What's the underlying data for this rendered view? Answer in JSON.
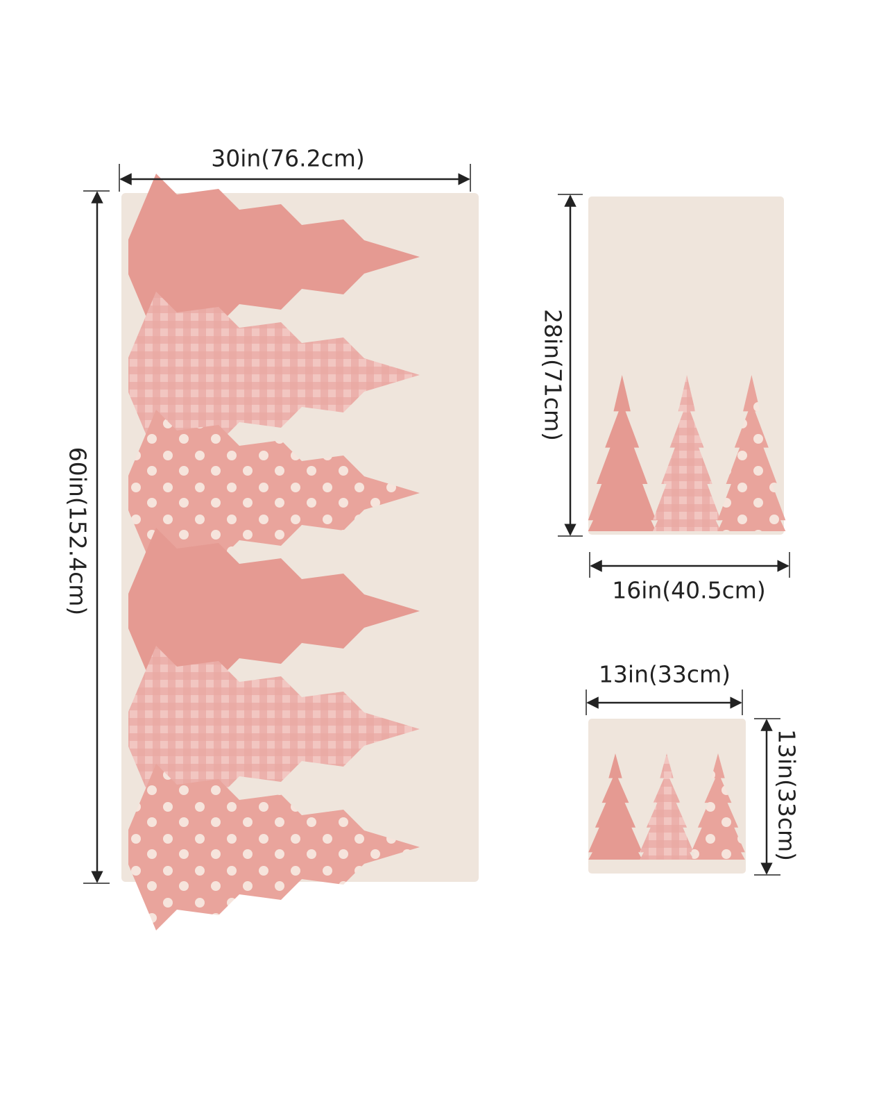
{
  "towels": [
    {
      "width_label": "30in(76.2cm)",
      "height_label": "60in(152.4cm)"
    },
    {
      "height_label": "28in(71cm)",
      "width_label": "16in(40.5cm)"
    },
    {
      "width_label": "13in(33cm)",
      "height_label": "13in(33cm)"
    }
  ]
}
